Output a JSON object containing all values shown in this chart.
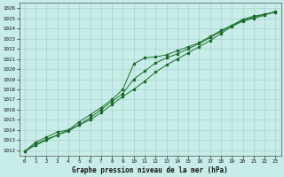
{
  "title": "Graphe pression niveau de la mer (hPa)",
  "background_color": "#c8ece8",
  "grid_color": "#a8d4cc",
  "line_color": "#1a6e2a",
  "marker_color": "#1a6e2a",
  "xlim": [
    -0.5,
    23.5
  ],
  "ylim": [
    1011.5,
    1026.5
  ],
  "x_ticks": [
    0,
    1,
    2,
    3,
    4,
    5,
    6,
    7,
    8,
    9,
    10,
    11,
    12,
    13,
    14,
    15,
    16,
    17,
    18,
    19,
    20,
    21,
    22,
    23
  ],
  "y_ticks": [
    1012,
    1013,
    1014,
    1015,
    1016,
    1017,
    1018,
    1019,
    1020,
    1021,
    1022,
    1023,
    1024,
    1025,
    1026
  ],
  "series1_x": [
    0,
    1,
    2,
    3,
    4,
    5,
    6,
    7,
    8,
    9,
    10,
    11,
    12,
    13,
    14,
    15,
    16,
    17,
    18,
    19,
    20,
    21,
    22,
    23
  ],
  "series1_y": [
    1011.9,
    1012.8,
    1013.3,
    1013.8,
    1014.0,
    1014.8,
    1015.5,
    1016.2,
    1017.0,
    1018.0,
    1020.5,
    1021.1,
    1021.2,
    1021.4,
    1021.8,
    1022.2,
    1022.6,
    1023.2,
    1023.8,
    1024.3,
    1024.9,
    1025.2,
    1025.4,
    1025.6
  ],
  "series2_x": [
    0,
    1,
    2,
    3,
    4,
    5,
    6,
    7,
    8,
    9,
    10,
    11,
    12,
    13,
    14,
    15,
    16,
    17,
    18,
    19,
    20,
    21,
    22,
    23
  ],
  "series2_y": [
    1011.9,
    1012.6,
    1013.1,
    1013.5,
    1013.9,
    1014.5,
    1015.2,
    1016.0,
    1016.8,
    1017.6,
    1019.0,
    1019.8,
    1020.6,
    1021.1,
    1021.5,
    1022.0,
    1022.5,
    1023.1,
    1023.7,
    1024.3,
    1024.8,
    1025.1,
    1025.4,
    1025.6
  ],
  "series3_x": [
    0,
    1,
    2,
    3,
    4,
    5,
    6,
    7,
    8,
    9,
    10,
    11,
    12,
    13,
    14,
    15,
    16,
    17,
    18,
    19,
    20,
    21,
    22,
    23
  ],
  "series3_y": [
    1011.9,
    1012.5,
    1013.0,
    1013.5,
    1014.0,
    1014.5,
    1015.0,
    1015.7,
    1016.5,
    1017.3,
    1018.0,
    1018.8,
    1019.7,
    1020.4,
    1021.0,
    1021.6,
    1022.2,
    1022.8,
    1023.5,
    1024.2,
    1024.7,
    1025.0,
    1025.3,
    1025.7
  ],
  "title_fontsize": 5.5,
  "tick_fontsize": 4.2,
  "linewidth": 0.7,
  "markersize": 2.2
}
